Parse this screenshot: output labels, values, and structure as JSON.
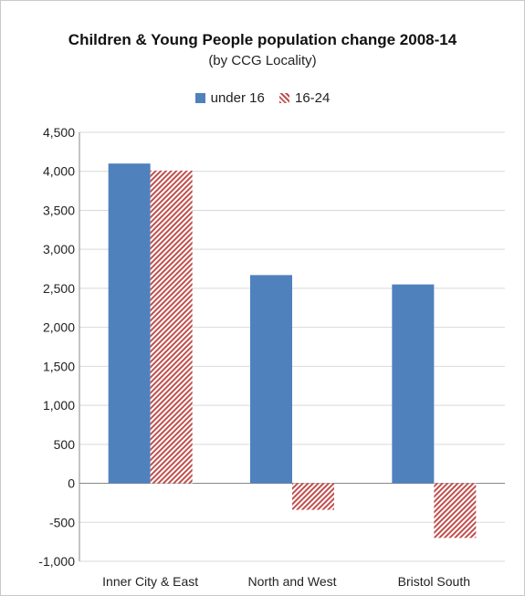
{
  "chart_data": {
    "type": "bar",
    "title": "Children & Young People population change 2008-14",
    "subtitle": "(by CCG Locality)",
    "categories": [
      "Inner City & East",
      "North and West",
      "Bristol South"
    ],
    "series": [
      {
        "name": "under 16",
        "values": [
          4100,
          2670,
          2550
        ],
        "color": "#4f81bd",
        "pattern": "solid"
      },
      {
        "name": "16-24",
        "values": [
          4010,
          -340,
          -700
        ],
        "color": "#c0504d",
        "pattern": "diagonal-hatch"
      }
    ],
    "ylim": [
      -1000,
      4500
    ],
    "yticks": [
      "-1,000",
      "-500",
      "0",
      "500",
      "1,000",
      "1,500",
      "2,000",
      "2,500",
      "3,000",
      "3,500",
      "4,000",
      "4,500"
    ],
    "grid": true,
    "legend_position": "top"
  }
}
